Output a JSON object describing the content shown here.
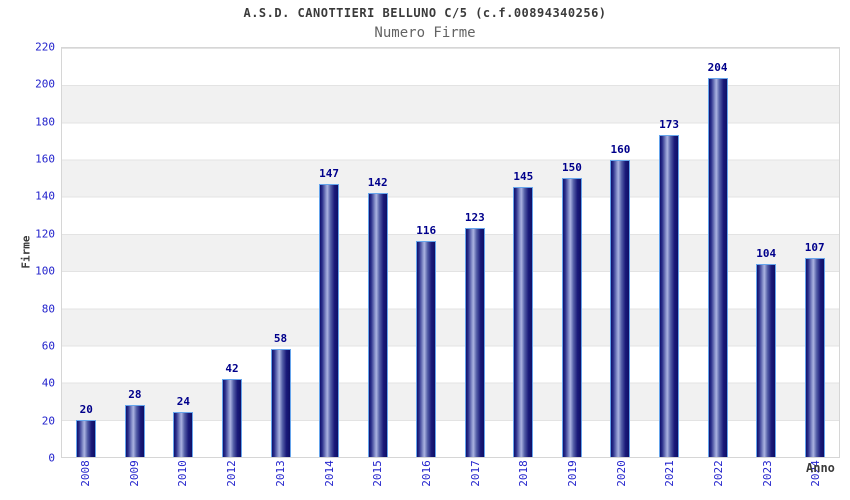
{
  "header": {
    "title": "A.S.D. CANOTTIERI BELLUNO C/5 (c.f.00894340256)",
    "subtitle": "Numero Firme"
  },
  "chart_data": {
    "type": "bar",
    "title": "A.S.D. CANOTTIERI BELLUNO C/5 (c.f.00894340256)",
    "subtitle": "Numero Firme",
    "xlabel": "Anno",
    "ylabel": "Firme",
    "categories": [
      "2008",
      "2009",
      "2010",
      "2012",
      "2013",
      "2014",
      "2015",
      "2016",
      "2017",
      "2018",
      "2019",
      "2020",
      "2021",
      "2022",
      "2023",
      "2024"
    ],
    "values": [
      20,
      28,
      24,
      42,
      58,
      147,
      142,
      116,
      123,
      145,
      150,
      160,
      173,
      204,
      104,
      107
    ],
    "ylim": [
      0,
      220
    ],
    "y_ticks": [
      0,
      20,
      40,
      60,
      80,
      100,
      120,
      140,
      160,
      180,
      200,
      220
    ],
    "grid": "alternating horizontal bands every 20 units",
    "legend": "none",
    "colors": {
      "bar_dark": "#10106e",
      "bar_highlight": "#aab3e0",
      "bar_border": "#66a5ec",
      "tick_label": "#2323cc",
      "value_label": "#00008b",
      "band_gray": "#f1f1f1",
      "title_text": "#3a3a3a",
      "subtitle_text": "#636363"
    }
  }
}
